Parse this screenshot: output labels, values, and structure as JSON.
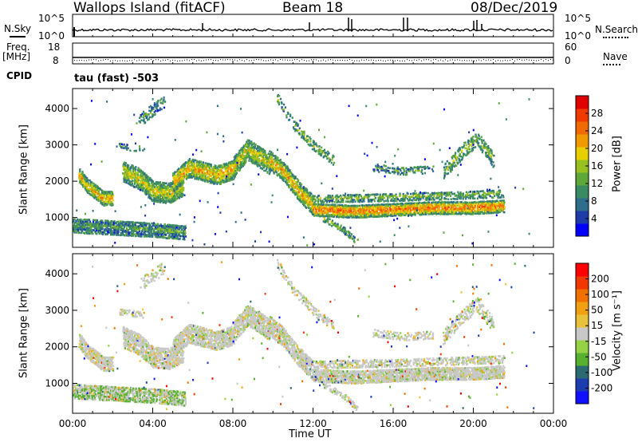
{
  "header": {
    "station": "Wallops Island (fitACF)",
    "beam": "Beam 18",
    "date": "08/Dec/2019"
  },
  "strip_top": {
    "left_label": "N.Sky",
    "left_ticks": [
      "10^5",
      "10^0"
    ],
    "right_ticks": [
      "10^5",
      "10^0"
    ],
    "right_label": "N.Search"
  },
  "strip_freq": {
    "left_label_line1": "Freq.",
    "left_label_line2": "[MHz]",
    "left_ticks": [
      "18",
      "8"
    ],
    "right_ticks": [
      "60",
      "0"
    ],
    "right_label": "Nave"
  },
  "cpid": {
    "label": "CPID",
    "program": "tau (fast) -503"
  },
  "colors": {
    "power": [
      "#0000ff",
      "#1e3ca8",
      "#2e6e8c",
      "#3a8a62",
      "#5ea83a",
      "#98c020",
      "#e8d000",
      "#f09a00",
      "#f06a00",
      "#f03a00",
      "#e00000"
    ],
    "velocity": [
      "#1010ff",
      "#1c3cb0",
      "#2a6a70",
      "#58b030",
      "#96d246",
      "#c8c8c8",
      "#e8c23a",
      "#f0a010",
      "#f07000",
      "#f03800",
      "#ff0000"
    ]
  },
  "chart_data": [
    {
      "type": "heatmap",
      "name": "power-panel",
      "ylabel": "Slant Range [km]",
      "yticks": [
        1000,
        2000,
        3000,
        4000
      ],
      "ylim": [
        180,
        4550
      ],
      "xlim": [
        0,
        24
      ],
      "colorbar": {
        "label": "Power [dB]",
        "ticks": [
          4,
          8,
          12,
          16,
          20,
          24,
          28
        ],
        "range": [
          0,
          32
        ]
      }
    },
    {
      "type": "heatmap",
      "name": "velocity-panel",
      "ylabel": "Slant Range [km]",
      "yticks": [
        1000,
        2000,
        3000,
        4000
      ],
      "ylim": [
        180,
        4550
      ],
      "xlim": [
        0,
        24
      ],
      "xlabel": "Time UT",
      "xticks": [
        "00:00",
        "04:00",
        "08:00",
        "12:00",
        "16:00",
        "20:00",
        "00:00"
      ],
      "colorbar": {
        "label": "Velocity [m s⁻¹]",
        "ticks": [
          200,
          100,
          50,
          15,
          -15,
          -50,
          -100,
          -200
        ]
      }
    }
  ]
}
